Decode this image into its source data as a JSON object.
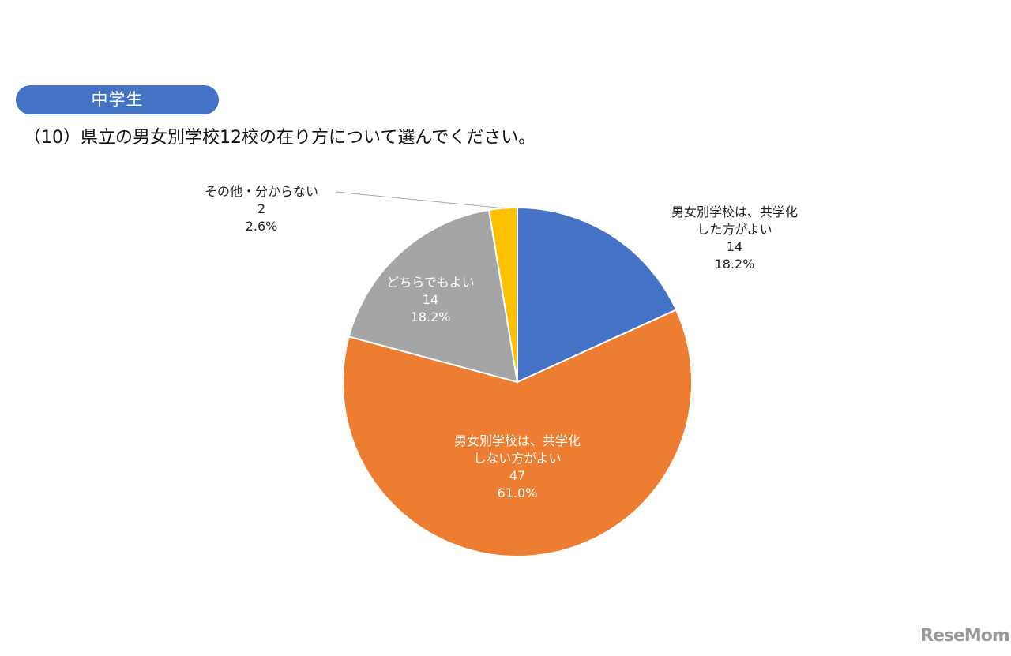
{
  "badge": "中学生",
  "question": "（10）県立の男女別学校12校の在り方について選んでください。",
  "chart_data": {
    "type": "pie",
    "title": "",
    "slices": [
      {
        "label_lines": [
          "男女別学校は、共学化",
          "した方がよい"
        ],
        "count": "14",
        "percent": "18.2%",
        "value": 18.2,
        "color": "#4472c4"
      },
      {
        "label_lines": [
          "男女別学校は、共学化",
          "しない方がよい"
        ],
        "count": "47",
        "percent": "61.0%",
        "value": 61.0,
        "color": "#ed7d31"
      },
      {
        "label_lines": [
          "どちらでもよい"
        ],
        "count": "14",
        "percent": "18.2%",
        "value": 18.2,
        "color": "#a5a5a5"
      },
      {
        "label_lines": [
          "その他・分からない"
        ],
        "count": "2",
        "percent": "2.6%",
        "value": 2.6,
        "color": "#ffc000"
      }
    ]
  },
  "watermark": "ReseMom"
}
